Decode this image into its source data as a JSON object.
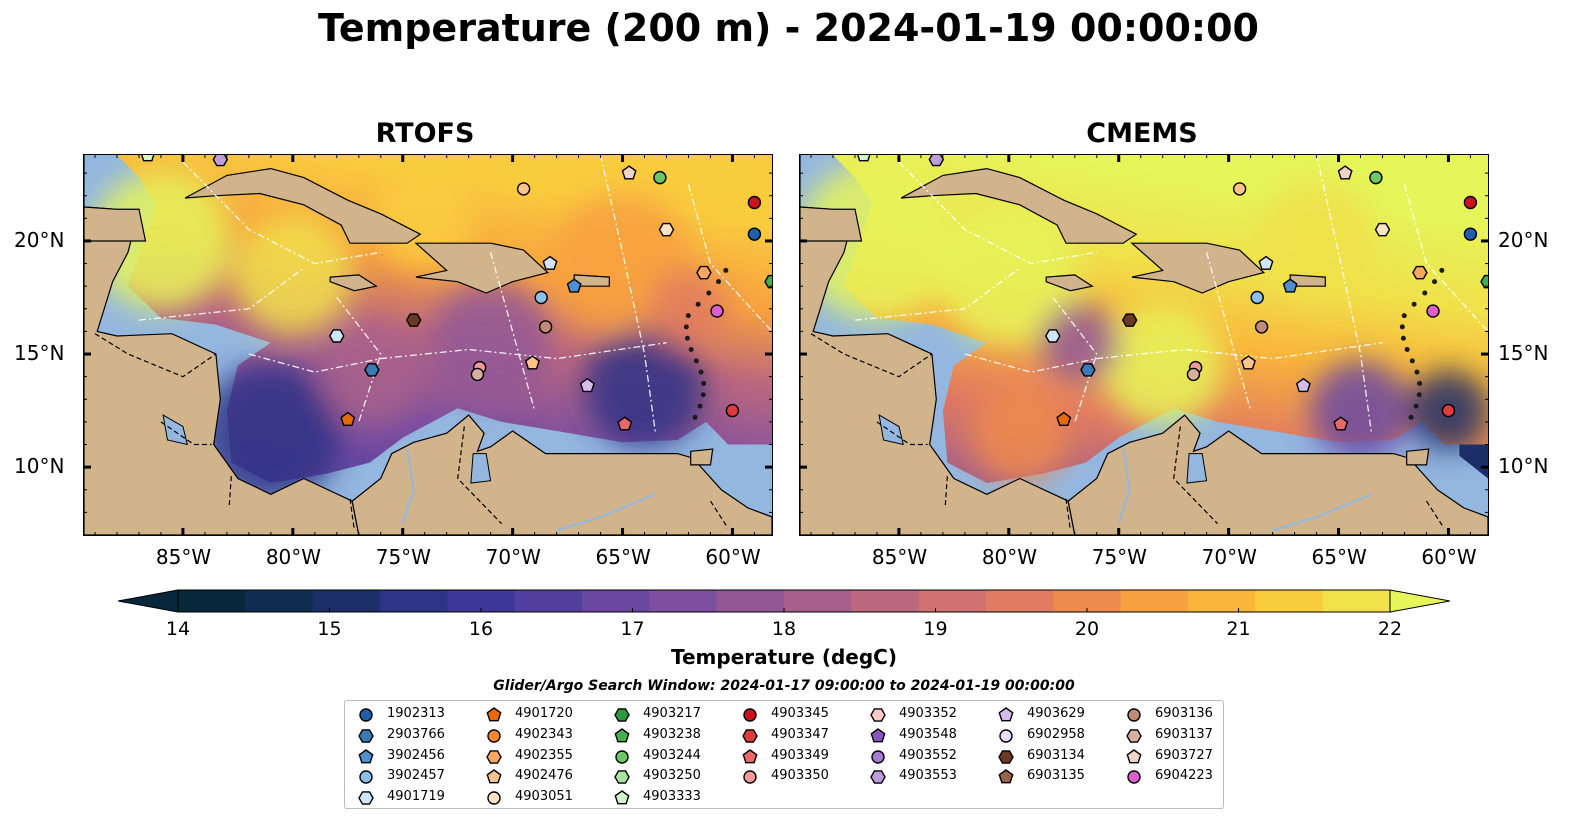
{
  "title": "Temperature (200 m) - 2024-01-19 00:00:00",
  "maps": [
    {
      "title": "RTOFS",
      "palette": "warm"
    },
    {
      "title": "CMEMS",
      "palette": "hot"
    }
  ],
  "x_ticks": [
    "85°W",
    "80°W",
    "75°W",
    "70°W",
    "65°W",
    "60°W"
  ],
  "y_ticks": [
    "20°N",
    "15°N",
    "10°N"
  ],
  "colorbar": {
    "min": 14,
    "max": 22,
    "ticks": [
      "14",
      "15",
      "16",
      "17",
      "18",
      "19",
      "20",
      "21",
      "22"
    ],
    "label": "Temperature (degC)",
    "colors": [
      "#08273a",
      "#0f2d4e",
      "#1d2f68",
      "#2d3385",
      "#3d3898",
      "#52409f",
      "#6a48a2",
      "#7e4fa1",
      "#925896",
      "#a7608b",
      "#bc687e",
      "#d07070",
      "#e17b61",
      "#ef8a4d",
      "#f7a03f",
      "#fab63b",
      "#f9cc3e",
      "#f0e04a",
      "#e5f55a"
    ]
  },
  "legend": {
    "title": "Glider/Argo Search Window: 2024-01-17 09:00:00 to 2024-01-19 00:00:00",
    "columns": [
      [
        {
          "id": "1902313",
          "color": "#1f5fa8",
          "marker": "circle"
        },
        {
          "id": "2903766",
          "color": "#3a7ab8",
          "marker": "hexagon"
        },
        {
          "id": "3902456",
          "color": "#4f8fd0",
          "marker": "pentagon"
        },
        {
          "id": "3902457",
          "color": "#8cc0ec",
          "marker": "circle"
        },
        {
          "id": "4901719",
          "color": "#cfe6fa",
          "marker": "hexagon"
        }
      ],
      [
        {
          "id": "4901720",
          "color": "#e8680c",
          "marker": "pentagon"
        },
        {
          "id": "4902343",
          "color": "#f5892a",
          "marker": "circle"
        },
        {
          "id": "4902355",
          "color": "#f9a860",
          "marker": "hexagon"
        },
        {
          "id": "4902476",
          "color": "#fbc48c",
          "marker": "pentagon"
        },
        {
          "id": "4903051",
          "color": "#fde2c4",
          "marker": "circle"
        }
      ],
      [
        {
          "id": "4903217",
          "color": "#2a9a3c",
          "marker": "hexagon"
        },
        {
          "id": "4903238",
          "color": "#43b04d",
          "marker": "pentagon"
        },
        {
          "id": "4903244",
          "color": "#6cc866",
          "marker": "circle"
        },
        {
          "id": "4903250",
          "color": "#a8e3a0",
          "marker": "hexagon"
        },
        {
          "id": "4903333",
          "color": "#d3f5cc",
          "marker": "pentagon"
        }
      ],
      [
        {
          "id": "4903345",
          "color": "#c8141c",
          "marker": "circle"
        },
        {
          "id": "4903347",
          "color": "#dd3c3c",
          "marker": "hexagon"
        },
        {
          "id": "4903349",
          "color": "#e76868",
          "marker": "pentagon"
        },
        {
          "id": "4903350",
          "color": "#f29a9a",
          "marker": "circle"
        }
      ],
      [
        {
          "id": "4903352",
          "color": "#fccbcb",
          "marker": "hexagon"
        },
        {
          "id": "4903548",
          "color": "#8a56c0",
          "marker": "pentagon"
        },
        {
          "id": "4903552",
          "color": "#a67bd0",
          "marker": "circle"
        },
        {
          "id": "4903553",
          "color": "#bd9ddc",
          "marker": "hexagon"
        }
      ],
      [
        {
          "id": "4903629",
          "color": "#d3bdec",
          "marker": "pentagon"
        },
        {
          "id": "6902958",
          "color": "#e8dcf6",
          "marker": "circle"
        },
        {
          "id": "6903134",
          "color": "#6b3a24",
          "marker": "hexagon"
        },
        {
          "id": "6903135",
          "color": "#9a6248",
          "marker": "pentagon"
        }
      ],
      [
        {
          "id": "6903136",
          "color": "#c08a76",
          "marker": "circle"
        },
        {
          "id": "6903137",
          "color": "#d8ae9e",
          "marker": "hexagon"
        },
        {
          "id": "6903727",
          "color": "#f0d2c6",
          "marker": "pentagon"
        },
        {
          "id": "6904223",
          "color": "#dd5fcd",
          "marker": "circle"
        }
      ]
    ]
  },
  "markers": [
    {
      "lon": -86.6,
      "lat": 23.8,
      "color": "#d3f5cc",
      "marker": "pentagon"
    },
    {
      "lon": -83.3,
      "lat": 23.6,
      "color": "#bd9ddc",
      "marker": "hexagon"
    },
    {
      "lon": -69.5,
      "lat": 22.3,
      "color": "#fbc48c",
      "marker": "circle"
    },
    {
      "lon": -64.7,
      "lat": 23.0,
      "color": "#f0d2c6",
      "marker": "pentagon"
    },
    {
      "lon": -63.3,
      "lat": 22.8,
      "color": "#6cc866",
      "marker": "circle"
    },
    {
      "lon": -59.0,
      "lat": 21.7,
      "color": "#c8141c",
      "marker": "circle"
    },
    {
      "lon": -63.0,
      "lat": 20.5,
      "color": "#fde2c4",
      "marker": "hexagon"
    },
    {
      "lon": -59.0,
      "lat": 20.3,
      "color": "#1f5fa8",
      "marker": "circle"
    },
    {
      "lon": -68.3,
      "lat": 19.0,
      "color": "#cfe6fa",
      "marker": "pentagon"
    },
    {
      "lon": -61.3,
      "lat": 18.6,
      "color": "#f9a860",
      "marker": "hexagon"
    },
    {
      "lon": -58.2,
      "lat": 18.2,
      "color": "#43b04d",
      "marker": "hexagon"
    },
    {
      "lon": -67.2,
      "lat": 18.0,
      "color": "#4f8fd0",
      "marker": "pentagon"
    },
    {
      "lon": -68.7,
      "lat": 17.5,
      "color": "#8cc0ec",
      "marker": "circle"
    },
    {
      "lon": -60.7,
      "lat": 16.9,
      "color": "#dd5fcd",
      "marker": "circle"
    },
    {
      "lon": -74.5,
      "lat": 16.5,
      "color": "#6b3a24",
      "marker": "hexagon"
    },
    {
      "lon": -68.5,
      "lat": 16.2,
      "color": "#c08a76",
      "marker": "circle"
    },
    {
      "lon": -78.0,
      "lat": 15.8,
      "color": "#cfe6fa",
      "marker": "hexagon"
    },
    {
      "lon": -69.1,
      "lat": 14.6,
      "color": "#fbc48c",
      "marker": "pentagon"
    },
    {
      "lon": -71.5,
      "lat": 14.4,
      "color": "#f29a9a",
      "marker": "circle"
    },
    {
      "lon": -71.6,
      "lat": 14.1,
      "color": "#d8ae9e",
      "marker": "circle"
    },
    {
      "lon": -76.4,
      "lat": 14.3,
      "color": "#3a7ab8",
      "marker": "hexagon"
    },
    {
      "lon": -66.6,
      "lat": 13.6,
      "color": "#d3bdec",
      "marker": "pentagon"
    },
    {
      "lon": -77.5,
      "lat": 12.1,
      "color": "#e8680c",
      "marker": "pentagon"
    },
    {
      "lon": -64.9,
      "lat": 11.9,
      "color": "#e76868",
      "marker": "pentagon"
    },
    {
      "lon": -60.0,
      "lat": 12.5,
      "color": "#dd3c3c",
      "marker": "circle"
    }
  ]
}
